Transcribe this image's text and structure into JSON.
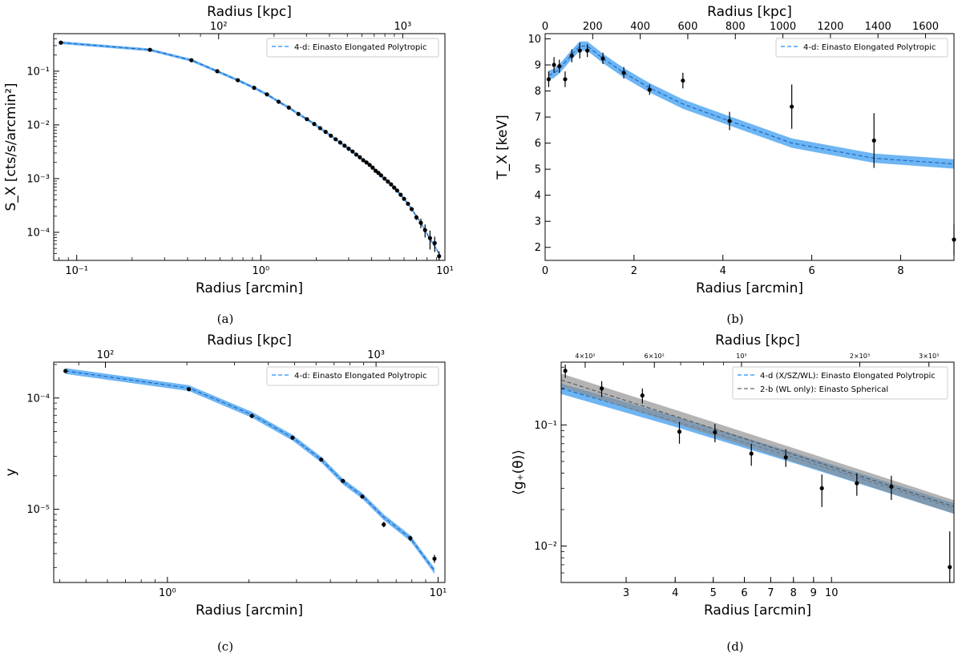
{
  "panels": {
    "a": {
      "caption": "(a)"
    },
    "b": {
      "caption": "(b)"
    },
    "c": {
      "caption": "(c)"
    },
    "d": {
      "caption": "(d)"
    }
  },
  "colors": {
    "model": "#1f8fff",
    "band": "#3d9cf0",
    "ref": "#666666",
    "refband": "#8c8c8c",
    "points": "#000000"
  },
  "chart_data": [
    {
      "id": "a",
      "type": "line",
      "xscale": "log",
      "yscale": "log",
      "xlabel": "Radius [arcmin]",
      "ylabel": "S_X [cts/s/arcmin²]",
      "top_label": "Radius [kpc]",
      "xlim": [
        0.075,
        10
      ],
      "ylim": [
        3e-05,
        0.5
      ],
      "xticks": [
        {
          "v": 0.1,
          "t": "10⁻¹"
        },
        {
          "v": 1,
          "t": "10⁰"
        },
        {
          "v": 10,
          "t": "10¹"
        }
      ],
      "yticks": [
        {
          "v": 0.0001,
          "t": "10⁻⁴"
        },
        {
          "v": 0.001,
          "t": "10⁻³"
        },
        {
          "v": 0.01,
          "t": "10⁻²"
        },
        {
          "v": 0.1,
          "t": "10⁻¹"
        }
      ],
      "top_ticks": [
        {
          "v": 0.59,
          "t": "10²"
        },
        {
          "v": 5.9,
          "t": "10³"
        }
      ],
      "top_minor": [
        0.36,
        0.47,
        1.18,
        1.77,
        2.36,
        2.95,
        3.54,
        4.13,
        4.72,
        5.31
      ],
      "legend": [
        "4-d: Einasto Elongated Polytropic"
      ],
      "series": [
        {
          "name": "4-d: Einasto Elongated Polytropic",
          "style": "dashed-band",
          "x": [
            0.082,
            0.25,
            0.42,
            0.58,
            0.75,
            0.92,
            1.08,
            1.25,
            1.42,
            1.6,
            1.78,
            1.95,
            2.1,
            2.25,
            2.4,
            2.55,
            2.7,
            2.85,
            3.0,
            3.15,
            3.3,
            3.45,
            3.6,
            3.75,
            3.9,
            4.05,
            4.2,
            4.35,
            4.5,
            4.7,
            4.9,
            5.1,
            5.3,
            5.5,
            5.75,
            6.0,
            6.3,
            6.6,
            7.0,
            7.4,
            7.8,
            8.3,
            8.8,
            9.3
          ],
          "y": [
            0.34,
            0.25,
            0.16,
            0.1,
            0.068,
            0.049,
            0.037,
            0.027,
            0.021,
            0.016,
            0.0128,
            0.0104,
            0.0087,
            0.0074,
            0.0063,
            0.0054,
            0.0047,
            0.0041,
            0.0036,
            0.0032,
            0.0028,
            0.0025,
            0.0022,
            0.002,
            0.0018,
            0.0016,
            0.0014,
            0.00128,
            0.00115,
            0.001,
            0.00088,
            0.00078,
            0.00068,
            0.0006,
            0.0005,
            0.00042,
            0.00034,
            0.00027,
            0.0002,
            0.00015,
            0.00011,
            7.5e-05,
            5.5e-05,
            4e-05
          ],
          "band_frac": 0.06
        }
      ],
      "points": {
        "x": [
          0.082,
          0.25,
          0.42,
          0.58,
          0.75,
          0.92,
          1.08,
          1.25,
          1.42,
          1.6,
          1.78,
          1.95,
          2.1,
          2.25,
          2.4,
          2.55,
          2.7,
          2.85,
          3.0,
          3.15,
          3.3,
          3.45,
          3.6,
          3.75,
          3.9,
          4.05,
          4.2,
          4.35,
          4.5,
          4.7,
          4.9,
          5.1,
          5.3,
          5.5,
          5.75,
          6.0,
          6.3,
          6.6,
          7.0,
          7.4,
          7.8,
          8.3,
          8.8,
          9.3
        ],
        "y": [
          0.34,
          0.25,
          0.16,
          0.1,
          0.068,
          0.049,
          0.037,
          0.027,
          0.021,
          0.016,
          0.0128,
          0.0104,
          0.0087,
          0.0074,
          0.0063,
          0.0054,
          0.0047,
          0.0041,
          0.0036,
          0.0032,
          0.0028,
          0.0025,
          0.0022,
          0.002,
          0.0018,
          0.0016,
          0.0014,
          0.00128,
          0.00115,
          0.001,
          0.00088,
          0.00078,
          0.00068,
          0.0006,
          0.0005,
          0.00042,
          0.00034,
          0.00027,
          0.00019,
          0.00015,
          0.00011,
          7.8e-05,
          6.3e-05,
          3.6e-05
        ],
        "err": [
          0,
          0,
          0,
          0,
          0,
          0,
          0,
          0,
          0,
          0,
          0,
          0,
          0,
          0,
          0,
          0,
          0,
          0,
          0,
          0,
          0,
          0,
          0,
          0,
          0,
          0,
          0,
          0,
          0,
          0,
          0,
          0,
          0,
          0,
          0,
          0,
          0,
          0,
          2e-05,
          3e-05,
          3e-05,
          3e-05,
          2e-05,
          8e-06
        ]
      }
    },
    {
      "id": "b",
      "type": "line",
      "xscale": "linear",
      "yscale": "linear",
      "xlabel": "Radius [arcmin]",
      "ylabel": "T_X [keV]",
      "top_label": "Radius [kpc]",
      "xlim": [
        0,
        9.2
      ],
      "ylim": [
        1.5,
        10.2
      ],
      "xticks": [
        {
          "v": 0,
          "t": "0"
        },
        {
          "v": 2,
          "t": "2"
        },
        {
          "v": 4,
          "t": "4"
        },
        {
          "v": 6,
          "t": "6"
        },
        {
          "v": 8,
          "t": "8"
        }
      ],
      "yticks": [
        {
          "v": 2,
          "t": "2"
        },
        {
          "v": 3,
          "t": "3"
        },
        {
          "v": 4,
          "t": "4"
        },
        {
          "v": 5,
          "t": "5"
        },
        {
          "v": 6,
          "t": "6"
        },
        {
          "v": 7,
          "t": "7"
        },
        {
          "v": 8,
          "t": "8"
        },
        {
          "v": 9,
          "t": "9"
        },
        {
          "v": 10,
          "t": "10"
        }
      ],
      "top_ticks": [
        {
          "v": 0,
          "t": "0"
        },
        {
          "v": 1.07,
          "t": "200"
        },
        {
          "v": 2.14,
          "t": "400"
        },
        {
          "v": 3.21,
          "t": "600"
        },
        {
          "v": 4.28,
          "t": "800"
        },
        {
          "v": 5.35,
          "t": "1000"
        },
        {
          "v": 6.42,
          "t": "1200"
        },
        {
          "v": 7.49,
          "t": "1400"
        },
        {
          "v": 8.56,
          "t": "1600"
        }
      ],
      "top_minor": [],
      "legend": [
        "4-d: Einasto Elongated Polytropic"
      ],
      "series": [
        {
          "name": "4-d: Einasto Elongated Polytropic",
          "style": "dashed-band",
          "x": [
            0.08,
            0.2,
            0.32,
            0.45,
            0.6,
            0.78,
            0.95,
            1.3,
            1.77,
            2.35,
            3.1,
            4.15,
            5.55,
            7.4,
            9.2
          ],
          "y": [
            8.6,
            8.68,
            8.85,
            9.1,
            9.4,
            9.72,
            9.72,
            9.25,
            8.7,
            8.12,
            7.5,
            6.85,
            6.0,
            5.42,
            5.2
          ],
          "band_abs": 0.18
        }
      ],
      "points": {
        "x": [
          0.08,
          0.2,
          0.32,
          0.45,
          0.6,
          0.78,
          0.95,
          1.3,
          1.77,
          2.35,
          3.1,
          4.15,
          5.55,
          7.4,
          9.2
        ],
        "y": [
          8.45,
          9.0,
          8.95,
          8.45,
          9.35,
          9.55,
          9.55,
          9.25,
          8.7,
          8.05,
          8.4,
          6.85,
          7.4,
          6.1,
          2.3
        ],
        "err": [
          0.3,
          0.3,
          0.25,
          0.3,
          0.25,
          0.3,
          0.25,
          0.22,
          0.22,
          0.2,
          0.3,
          0.35,
          0.85,
          1.05,
          0.6
        ]
      }
    },
    {
      "id": "c",
      "type": "line",
      "xscale": "log",
      "yscale": "log",
      "xlabel": "Radius [arcmin]",
      "ylabel": "y",
      "top_label": "Radius [kpc]",
      "xlim": [
        0.38,
        10.6
      ],
      "ylim": [
        2.2e-06,
        0.00021
      ],
      "xticks": [
        {
          "v": 1,
          "t": "10⁰"
        },
        {
          "v": 10,
          "t": "10¹"
        }
      ],
      "yticks": [
        {
          "v": 1e-05,
          "t": "10⁻⁵"
        },
        {
          "v": 0.0001,
          "t": "10⁻⁴"
        }
      ],
      "top_ticks": [
        {
          "v": 0.59,
          "t": "10²"
        },
        {
          "v": 5.9,
          "t": "10³"
        }
      ],
      "top_minor": [
        0.47,
        1.18,
        1.77,
        2.36,
        2.95,
        3.54,
        4.13,
        4.72,
        5.31
      ],
      "legend": [
        "4-d: Einasto Elongated Polytropic"
      ],
      "series": [
        {
          "name": "4-d: Einasto Elongated Polytropic",
          "style": "dashed-band",
          "x": [
            0.42,
            1.2,
            2.05,
            2.9,
            3.7,
            4.45,
            5.25,
            6.3,
            7.9,
            9.7
          ],
          "y": [
            0.000175,
            0.000123,
            7.1e-05,
            4.4e-05,
            2.8e-05,
            1.78e-05,
            1.32e-05,
            8.5e-06,
            5.5e-06,
            2.8e-06
          ],
          "band_frac": 0.06
        }
      ],
      "points": {
        "x": [
          0.42,
          1.2,
          2.05,
          2.9,
          3.7,
          4.45,
          5.25,
          6.3,
          7.9,
          9.7
        ],
        "y": [
          0.000175,
          0.00012,
          6.9e-05,
          4.4e-05,
          2.8e-05,
          1.8e-05,
          1.3e-05,
          7.3e-06,
          5.5e-06,
          3.6e-06
        ],
        "err": [
          4e-06,
          3e-06,
          2e-06,
          1.2e-06,
          8e-07,
          6e-07,
          5e-07,
          4e-07,
          3e-07,
          3e-07
        ]
      }
    },
    {
      "id": "d",
      "type": "line",
      "xscale": "log",
      "yscale": "log",
      "xlabel": "Radius [arcmin]",
      "ylabel": "⟨g₊(θ)⟩",
      "top_label": "Radius [kpc]",
      "xlim": [
        2.05,
        20.5
      ],
      "ylim": [
        0.005,
        0.33
      ],
      "xticks": [
        {
          "v": 3,
          "t": "3"
        },
        {
          "v": 4,
          "t": "4"
        },
        {
          "v": 5,
          "t": "5"
        },
        {
          "v": 6,
          "t": "6"
        },
        {
          "v": 7,
          "t": "7"
        },
        {
          "v": 8,
          "t": "8"
        },
        {
          "v": 9,
          "t": "9"
        },
        {
          "v": 10,
          "t": "10"
        }
      ],
      "yticks": [
        {
          "v": 0.01,
          "t": "10⁻²"
        },
        {
          "v": 0.1,
          "t": "10⁻¹"
        }
      ],
      "top_ticks": [
        {
          "v": 2.36,
          "t": "4×10²"
        },
        {
          "v": 3.54,
          "t": "6×10²"
        },
        {
          "v": 5.9,
          "t": "10³"
        },
        {
          "v": 11.8,
          "t": "2×10³"
        },
        {
          "v": 17.7,
          "t": "3×10³"
        }
      ],
      "top_minor": [
        2.95,
        4.13,
        4.72,
        5.31
      ],
      "legend": [
        "4-d (X/SZ/WL): Einasto Elongated Polytropic",
        "2-b (WL only): Einasto Spherical"
      ],
      "series": [
        {
          "name": "4-d (X/SZ/WL): Einasto Elongated Polytropic",
          "style": "dashed-band",
          "color": "model",
          "x": [
            2.05,
            4,
            8,
            20.5
          ],
          "y": [
            0.2,
            0.107,
            0.054,
            0.0205
          ],
          "band_frac": 0.1
        },
        {
          "name": "2-b (WL only): Einasto Spherical",
          "style": "dashed-band",
          "color": "ref",
          "x": [
            2.05,
            4,
            8,
            20.5
          ],
          "y": [
            0.235,
            0.118,
            0.057,
            0.0212
          ],
          "band_frac": 0.13
        }
      ],
      "points": {
        "x": [
          2.1,
          2.6,
          3.3,
          4.1,
          5.05,
          6.25,
          7.65,
          9.45,
          11.6,
          14.2,
          20.0
        ],
        "y": [
          0.28,
          0.2,
          0.175,
          0.088,
          0.087,
          0.058,
          0.054,
          0.03,
          0.033,
          0.031,
          0.0067
        ],
        "err": [
          0.035,
          0.03,
          0.025,
          0.018,
          0.015,
          0.012,
          0.009,
          0.009,
          0.007,
          0.007,
          0.0065
        ]
      }
    }
  ]
}
